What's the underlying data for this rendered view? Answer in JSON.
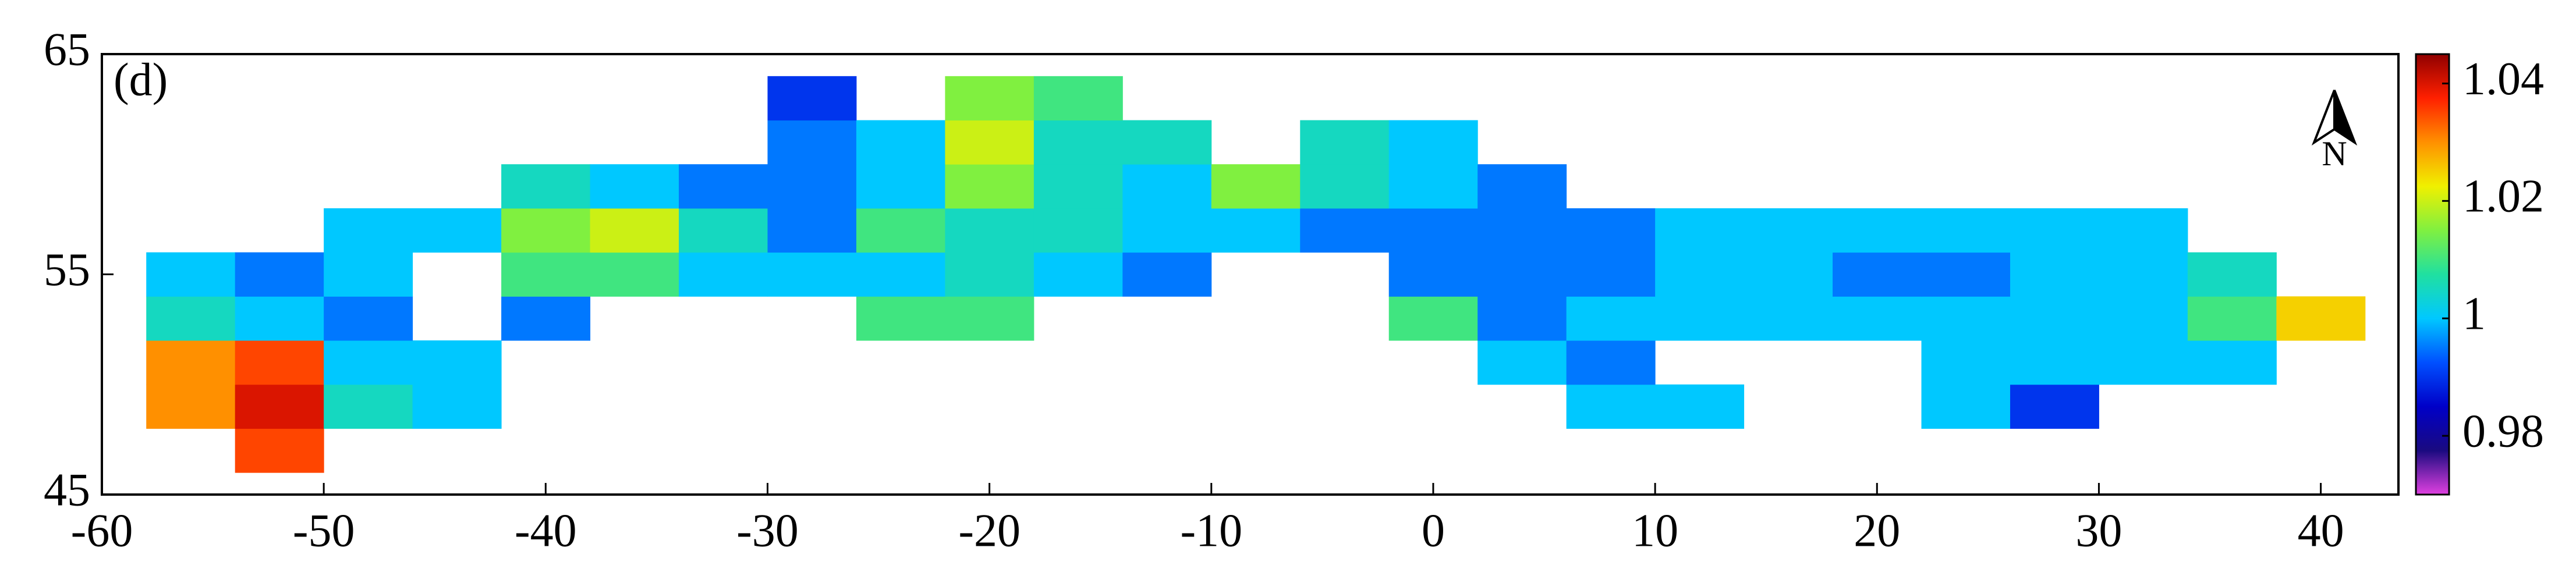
{
  "chart_data": {
    "type": "heatmap",
    "panel_label": "(d)",
    "north_label": "N",
    "xlim": [
      -60,
      43.5
    ],
    "ylim": [
      45,
      65
    ],
    "xticks": [
      -60,
      -50,
      -40,
      -30,
      -20,
      -10,
      0,
      10,
      20,
      30,
      40
    ],
    "yticks": [
      45,
      55,
      65
    ],
    "clim": [
      0.97,
      1.045
    ],
    "colorbar_ticks": [
      0.98,
      1,
      1.02,
      1.04
    ],
    "colormap": [
      "#e040e0",
      "#1a0a80",
      "#0000c8",
      "#0050ff",
      "#00c8ff",
      "#20e0a0",
      "#80f040",
      "#f0f000",
      "#ff9000",
      "#ff2000",
      "#900000"
    ],
    "lon_bins": [
      -58,
      -54,
      -50,
      -46,
      -42,
      -38,
      -34,
      -30,
      -26,
      -22,
      -18,
      -14,
      -10,
      -6,
      -2,
      2,
      6,
      10,
      14,
      18,
      22,
      26,
      30,
      34,
      38,
      42
    ],
    "lat_bins": [
      46,
      48,
      50,
      52,
      54,
      56,
      58,
      60,
      62,
      64
    ],
    "values": [
      [
        null,
        1.035,
        null,
        null,
        null,
        null,
        null,
        null,
        null,
        null,
        null,
        null,
        null,
        null,
        null,
        null,
        null,
        null,
        null,
        null,
        null,
        null,
        null,
        null,
        null
      ],
      [
        1.03,
        1.04,
        1.005,
        1.0,
        null,
        null,
        null,
        null,
        null,
        null,
        null,
        null,
        null,
        null,
        null,
        null,
        1.0,
        1.0,
        null,
        null,
        1.0,
        0.99,
        null,
        null,
        null
      ],
      [
        1.03,
        1.035,
        1.0,
        1.0,
        null,
        null,
        null,
        null,
        null,
        null,
        null,
        null,
        null,
        null,
        null,
        1.0,
        0.995,
        null,
        null,
        null,
        1.0,
        1.0,
        1.0,
        1.0,
        null
      ],
      [
        1.005,
        1.0,
        0.995,
        null,
        0.995,
        null,
        null,
        null,
        1.01,
        1.01,
        null,
        null,
        null,
        null,
        1.01,
        0.995,
        1.0,
        1.0,
        1.0,
        1.0,
        1.0,
        1.0,
        1.0,
        1.01,
        1.025
      ],
      [
        1.0,
        0.995,
        1.0,
        null,
        1.01,
        1.01,
        1.0,
        1.0,
        1.0,
        1.005,
        1.0,
        0.995,
        null,
        null,
        0.995,
        0.995,
        0.995,
        1.0,
        1.0,
        0.995,
        0.995,
        1.0,
        1.0,
        1.005,
        null
      ],
      [
        null,
        null,
        1.0,
        1.0,
        1.015,
        1.02,
        1.005,
        0.995,
        1.01,
        1.005,
        1.005,
        1.0,
        1.0,
        0.995,
        0.995,
        0.995,
        0.995,
        1.0,
        1.0,
        1.0,
        1.0,
        1.0,
        1.0,
        null,
        null
      ],
      [
        null,
        null,
        null,
        null,
        1.005,
        1.0,
        0.995,
        0.995,
        1.0,
        1.015,
        1.005,
        1.0,
        1.015,
        1.005,
        1.0,
        0.995,
        null,
        null,
        null,
        null,
        null,
        null,
        null,
        null,
        null
      ],
      [
        null,
        null,
        null,
        null,
        null,
        null,
        null,
        0.995,
        1.0,
        1.02,
        1.005,
        1.005,
        null,
        1.005,
        1.0,
        null,
        null,
        null,
        null,
        null,
        null,
        null,
        null,
        null,
        null
      ],
      [
        null,
        null,
        null,
        null,
        null,
        null,
        null,
        0.99,
        null,
        1.015,
        1.01,
        null,
        null,
        null,
        null,
        null,
        null,
        null,
        null,
        null,
        null,
        null,
        null,
        null,
        null
      ]
    ]
  }
}
